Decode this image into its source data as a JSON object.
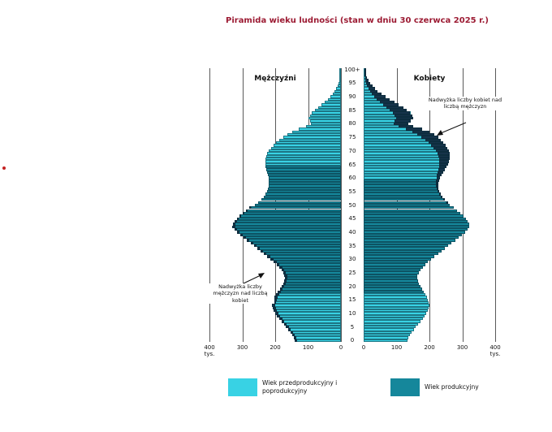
{
  "page": {
    "title": "Piramida wieku ludności (stan w dniu 30 czerwca 2025 r.)"
  },
  "labels": {
    "men": "Mężczyźni",
    "women": "Kobiety"
  },
  "annotations": {
    "women_excess": "Nadwyżka liczby kobiet nad liczbą mężczyzn",
    "men_excess": "Nadwyżka liczby mężczyzn nad liczbą kobiet"
  },
  "legend": [
    {
      "label": "Wiek przedprodukcyjny i poprodukcyjny",
      "color": "#38d2e4"
    },
    {
      "label": "Wiek produkcyjny",
      "color": "#15879b"
    }
  ],
  "chart_data": {
    "type": "bar",
    "variant": "population_pyramid",
    "title": "Piramida wieku ludności (stan w dniu 30 czerwca 2025 r.)",
    "unit": "tys.",
    "x_axis": {
      "max": 400,
      "step": 100,
      "ticks": [
        0,
        100,
        200,
        300,
        400
      ]
    },
    "age_axis": {
      "min": 0,
      "max": 100,
      "tick_step": 5,
      "top_label": "100+"
    },
    "productive_age": {
      "men": [
        18,
        64
      ],
      "women": [
        18,
        59
      ]
    },
    "colors": {
      "nonproductive": "#38d2e4",
      "productive": "#15879b",
      "excess": "#16334a"
    },
    "series": [
      {
        "name": "Mężczyźni",
        "values": [
          140,
          144,
          149,
          154,
          160,
          167,
          174,
          181,
          188,
          194,
          199,
          204,
          207,
          209,
          208,
          206,
          202,
          197,
          192,
          186,
          181,
          176,
          173,
          171,
          172,
          175,
          180,
          187,
          195,
          204,
          214,
          224,
          234,
          244,
          254,
          264,
          275,
          286,
          297,
          307,
          316,
          324,
          330,
          328,
          323,
          316,
          307,
          297,
          286,
          274,
          262,
          251,
          242,
          235,
          229,
          225,
          222,
          220,
          219,
          220,
          221,
          223,
          225,
          227,
          229,
          230,
          230,
          229,
          227,
          224,
          219,
          213,
          206,
          197,
          187,
          176,
          163,
          148,
          128,
          105,
          92,
          95,
          98,
          95,
          88,
          79,
          69,
          59,
          49,
          40,
          32,
          25,
          19,
          14,
          10,
          7,
          5,
          4,
          3,
          2,
          2
        ]
      },
      {
        "name": "Kobiety",
        "values": [
          133,
          137,
          141,
          146,
          152,
          159,
          165,
          172,
          179,
          184,
          189,
          194,
          197,
          199,
          198,
          196,
          192,
          187,
          183,
          177,
          172,
          168,
          165,
          163,
          164,
          167,
          172,
          179,
          187,
          196,
          206,
          216,
          226,
          236,
          246,
          256,
          267,
          278,
          289,
          299,
          308,
          316,
          322,
          321,
          317,
          311,
          303,
          294,
          284,
          273,
          262,
          252,
          244,
          238,
          233,
          230,
          228,
          227,
          228,
          230,
          233,
          237,
          242,
          247,
          252,
          256,
          259,
          261,
          262,
          261,
          259,
          255,
          250,
          243,
          235,
          226,
          214,
          200,
          178,
          150,
          135,
          142,
          150,
          148,
          142,
          132,
          120,
          107,
          93,
          79,
          66,
          54,
          43,
          34,
          26,
          20,
          15,
          11,
          8,
          6,
          5
        ]
      }
    ]
  }
}
